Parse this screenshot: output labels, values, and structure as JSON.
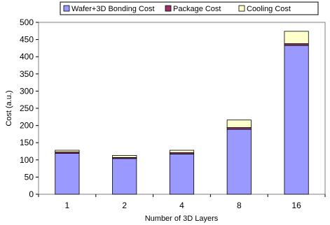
{
  "chart_data": {
    "type": "bar",
    "stacked": true,
    "title": "",
    "xlabel": "Number of 3D Layers",
    "ylabel": "Cost (a.u.)",
    "categories": [
      "1",
      "2",
      "4",
      "8",
      "16"
    ],
    "ylim": [
      0,
      500
    ],
    "yticks": [
      0,
      50,
      100,
      150,
      200,
      250,
      300,
      350,
      400,
      450,
      500
    ],
    "grid": false,
    "legend_position": "top",
    "series": [
      {
        "name": "Wafer+3D Bonding Cost",
        "color": "#9999ff",
        "values": [
          119,
          104,
          117,
          189,
          433
        ]
      },
      {
        "name": "Package Cost",
        "color": "#993366",
        "values": [
          4,
          3,
          4,
          5,
          5
        ]
      },
      {
        "name": "Cooling Cost",
        "color": "#ffffcc",
        "values": [
          5,
          6,
          7,
          22,
          36
        ]
      }
    ]
  }
}
